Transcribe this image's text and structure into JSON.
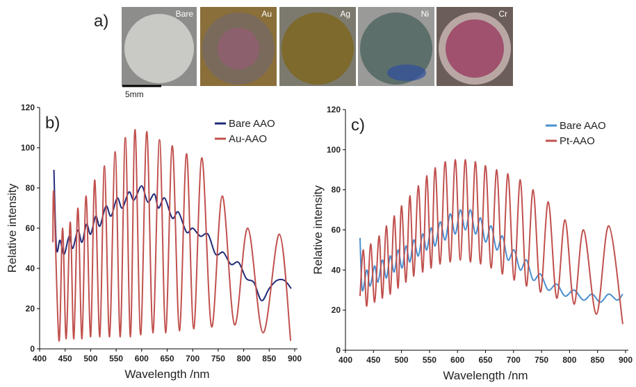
{
  "panel_a": {
    "label": "a)",
    "samples": [
      "Bare",
      "Au",
      "Ag",
      "Ni",
      "Cr"
    ],
    "scale": "5mm"
  },
  "chart_data": [
    {
      "type": "line",
      "panel": "b)",
      "xlabel": "Wavelength /nm",
      "ylabel": "Relative intensity",
      "xlim": [
        400,
        900
      ],
      "xticks": [
        400,
        450,
        500,
        550,
        600,
        650,
        700,
        750,
        800,
        850,
        900
      ],
      "ylim": [
        0,
        120
      ],
      "yticks": [
        0,
        20,
        40,
        60,
        80,
        100,
        120
      ],
      "grid": false,
      "legend": "upper right",
      "series": [
        {
          "name": "Bare AAO",
          "color": "#1f2a78",
          "x": [
            428,
            433,
            440,
            448,
            458,
            465,
            475,
            483,
            492,
            500,
            510,
            518,
            530,
            540,
            552,
            562,
            575,
            585,
            600,
            612,
            625,
            633,
            645,
            660,
            672,
            688,
            700,
            715,
            730,
            745,
            760,
            775,
            790,
            805,
            820,
            835,
            850,
            865,
            880,
            893
          ],
          "values": [
            89,
            50,
            54,
            47,
            56,
            50,
            59,
            53,
            62,
            57,
            66,
            61,
            71,
            66,
            75,
            70,
            78,
            74,
            81,
            73,
            77,
            70,
            75,
            65,
            68,
            58,
            60,
            56,
            57,
            47,
            48,
            42,
            43,
            35,
            33,
            24,
            30,
            34,
            34,
            30
          ]
        },
        {
          "name": "Au-AAO",
          "color": "#c0504d",
          "x": [
            426,
            428,
            438,
            445,
            452,
            460,
            467,
            475,
            483,
            491,
            500,
            508,
            518,
            527,
            537,
            548,
            558,
            568,
            578,
            587,
            598,
            610,
            622,
            635,
            647,
            660,
            674,
            688,
            702,
            718,
            737,
            758,
            782,
            808,
            838,
            870,
            892
          ],
          "values": [
            53,
            77,
            4,
            60,
            5,
            63,
            5,
            70,
            5,
            76,
            6,
            84,
            6,
            91,
            6,
            98,
            6,
            105,
            6,
            109,
            7,
            108,
            8,
            104,
            8,
            101,
            9,
            97,
            10,
            95,
            11,
            76,
            12,
            60,
            8,
            57,
            4
          ]
        }
      ]
    },
    {
      "type": "line",
      "panel": "c)",
      "xlabel": "Wavelength /nm",
      "ylabel": "Relative intensity",
      "xlim": [
        400,
        900
      ],
      "xticks": [
        400,
        450,
        500,
        550,
        600,
        650,
        700,
        750,
        800,
        850,
        900
      ],
      "ylim": [
        0,
        120
      ],
      "yticks": [
        0,
        20,
        40,
        60,
        80,
        100,
        120
      ],
      "grid": false,
      "legend": "upper right",
      "series": [
        {
          "name": "Bare AAO",
          "color": "#4a8fd0",
          "x": [
            426,
            430,
            438,
            444,
            452,
            458,
            466,
            473,
            480,
            487,
            494,
            501,
            508,
            515,
            522,
            530,
            538,
            545,
            553,
            560,
            569,
            578,
            587,
            596,
            605,
            614,
            623,
            632,
            641,
            650,
            660,
            670,
            680,
            690,
            701,
            712,
            723,
            735,
            748,
            762,
            777,
            792,
            808,
            825,
            840,
            855,
            870,
            885,
            895
          ],
          "values": [
            56,
            30,
            40,
            32,
            42,
            34,
            45,
            36,
            47,
            39,
            50,
            41,
            52,
            44,
            55,
            47,
            58,
            50,
            61,
            52,
            64,
            55,
            68,
            58,
            70,
            60,
            70,
            58,
            66,
            54,
            62,
            50,
            57,
            45,
            50,
            40,
            45,
            35,
            38,
            30,
            33,
            27,
            30,
            25,
            28,
            24,
            28,
            25,
            28
          ]
        },
        {
          "name": "Pt-AAO",
          "color": "#c0504d",
          "x": [
            426,
            432,
            438,
            445,
            452,
            460,
            466,
            473,
            480,
            487,
            494,
            500,
            508,
            515,
            522,
            530,
            538,
            545,
            553,
            560,
            569,
            578,
            587,
            596,
            605,
            614,
            623,
            632,
            641,
            650,
            660,
            670,
            680,
            690,
            701,
            712,
            723,
            735,
            748,
            762,
            777,
            792,
            808,
            825,
            848,
            870,
            895
          ],
          "values": [
            27,
            50,
            22,
            53,
            24,
            57,
            26,
            62,
            28,
            67,
            31,
            72,
            34,
            77,
            37,
            82,
            39,
            87,
            41,
            91,
            43,
            94,
            44,
            95,
            45,
            95,
            44,
            94,
            43,
            92,
            41,
            90,
            38,
            88,
            35,
            85,
            32,
            80,
            29,
            74,
            26,
            65,
            23,
            60,
            18,
            62,
            13
          ]
        }
      ]
    }
  ]
}
